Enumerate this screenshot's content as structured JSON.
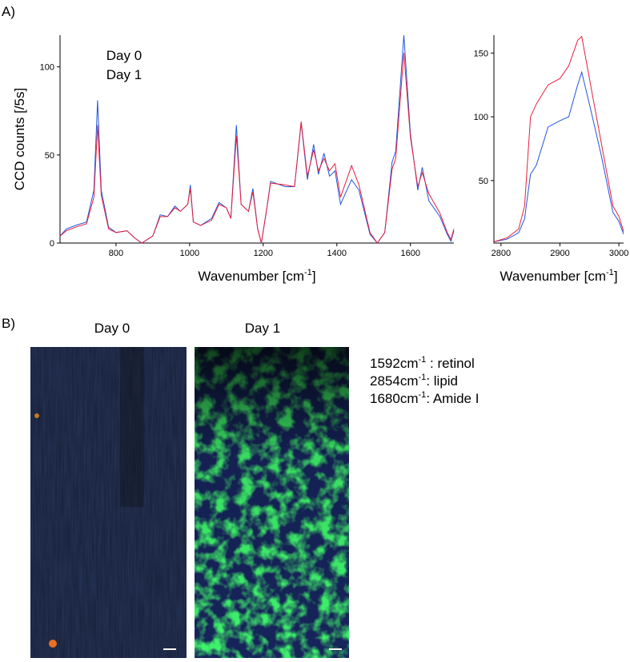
{
  "panel_labels": [
    "A)",
    "B)"
  ],
  "chart_data": [
    {
      "type": "line",
      "ylabel": "CCD counts [/5s]",
      "xlabel": {
        "text": "Wavenumber [cm",
        "sup": "-1",
        "close": "]"
      },
      "xlim": [
        648,
        1718
      ],
      "ylim": [
        0,
        118
      ],
      "xticks": [
        800,
        1000,
        1200,
        1400,
        1600
      ],
      "yticks": [
        0,
        50,
        100
      ],
      "x": [
        648,
        665,
        690,
        720,
        740,
        750,
        760,
        780,
        800,
        830,
        850,
        870,
        900,
        920,
        940,
        960,
        975,
        995,
        1002,
        1010,
        1030,
        1060,
        1080,
        1100,
        1112,
        1127,
        1140,
        1160,
        1172,
        1185,
        1195,
        1210,
        1220,
        1260,
        1285,
        1303,
        1320,
        1337,
        1350,
        1365,
        1380,
        1395,
        1410,
        1440,
        1460,
        1490,
        1510,
        1530,
        1550,
        1560,
        1582,
        1600,
        1620,
        1632,
        1650,
        1680,
        1700,
        1710,
        1718
      ],
      "series": [
        {
          "name": "Day 0",
          "color": "#2255dd",
          "values": [
            4,
            8,
            10,
            12,
            30,
            81,
            30,
            9,
            6,
            7,
            3,
            0,
            4,
            16,
            15,
            21,
            18,
            22,
            33,
            12,
            10,
            14,
            23,
            20,
            14,
            67,
            22,
            18,
            31,
            8,
            0,
            20,
            35,
            32,
            32,
            68,
            36,
            56,
            39,
            51,
            38,
            41,
            22,
            36,
            30,
            5,
            0,
            6,
            46,
            52,
            118,
            62,
            30,
            43,
            24,
            15,
            5,
            1,
            7
          ]
        },
        {
          "name": "Day 1",
          "color": "#e8203c",
          "values": [
            4,
            7,
            9,
            11,
            26,
            67,
            27,
            8,
            6,
            7,
            3,
            0,
            4,
            15,
            15,
            20,
            18,
            22,
            31,
            12,
            10,
            13,
            22,
            20,
            14,
            61,
            22,
            18,
            29,
            8,
            0,
            20,
            34,
            33,
            32,
            69,
            38,
            53,
            41,
            48,
            41,
            45,
            26,
            44,
            33,
            6,
            0,
            6,
            42,
            48,
            108,
            60,
            32,
            40,
            28,
            17,
            6,
            2,
            8
          ]
        }
      ]
    },
    {
      "type": "line",
      "xlabel": {
        "text": "Wavenumber [cm",
        "sup": "-1",
        "close": "]"
      },
      "xlim": [
        2788,
        3008
      ],
      "ylim": [
        1,
        164
      ],
      "xticks": [
        2800,
        2900,
        3000
      ],
      "yticks": [
        50,
        100,
        150
      ],
      "x": [
        2788,
        2810,
        2830,
        2840,
        2850,
        2860,
        2880,
        2900,
        2915,
        2930,
        2937,
        2950,
        2970,
        2990,
        3000,
        3008
      ],
      "series": [
        {
          "name": "Day 0",
          "color": "#2255dd",
          "values": [
            2,
            4,
            9,
            20,
            55,
            62,
            92,
            97,
            100,
            125,
            135,
            110,
            70,
            25,
            18,
            8
          ]
        },
        {
          "name": "Day 1",
          "color": "#e8203c",
          "values": [
            2,
            5,
            12,
            30,
            100,
            110,
            125,
            130,
            140,
            160,
            163,
            130,
            80,
            30,
            22,
            10
          ]
        }
      ]
    }
  ],
  "panel_b": {
    "titles": [
      "Day 0",
      "Day 1"
    ],
    "legend": [
      {
        "text": "1592cm",
        "sup": "-1",
        "label": " : retinol",
        "color": "#e8203c"
      },
      {
        "text": "2854cm",
        "sup": "-1",
        "label": ": lipid",
        "color": "#22dd22"
      },
      {
        "text": "1680cm",
        "sup": "-1",
        "label": ": Amide I",
        "color": "#2255dd"
      }
    ]
  }
}
